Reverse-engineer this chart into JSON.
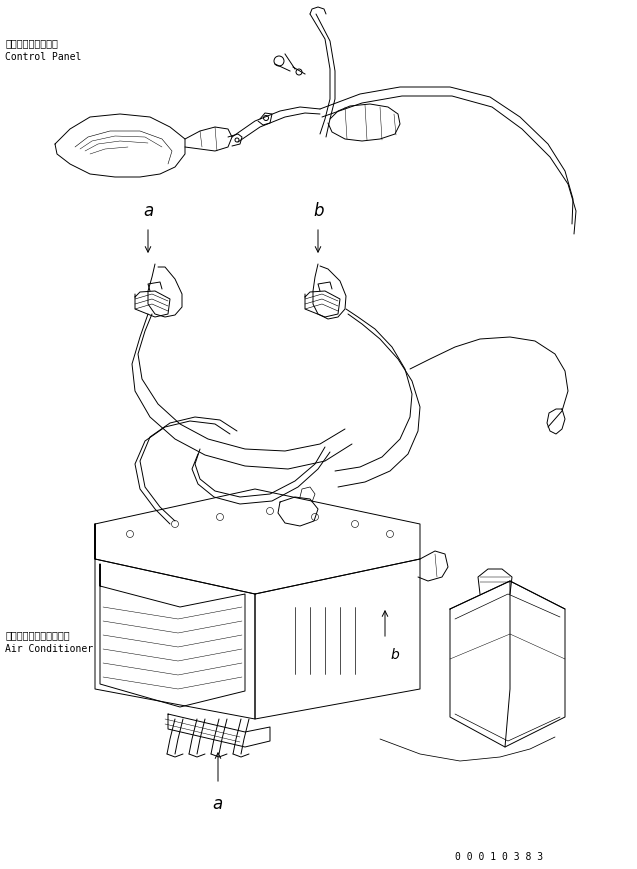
{
  "bg_color": "#ffffff",
  "line_color": "#000000",
  "fig_width": 6.37,
  "fig_height": 8.7,
  "dpi": 100,
  "label_control_panel_ja": "コントロールパネル",
  "label_control_panel_en": "Control Panel",
  "label_air_cond_ja": "エアーコンディショナ・",
  "label_air_cond_en": "Air Conditioner",
  "part_number": "0 0 0 1 0 3 8 3",
  "font_size_label": 7,
  "font_size_part": 7
}
